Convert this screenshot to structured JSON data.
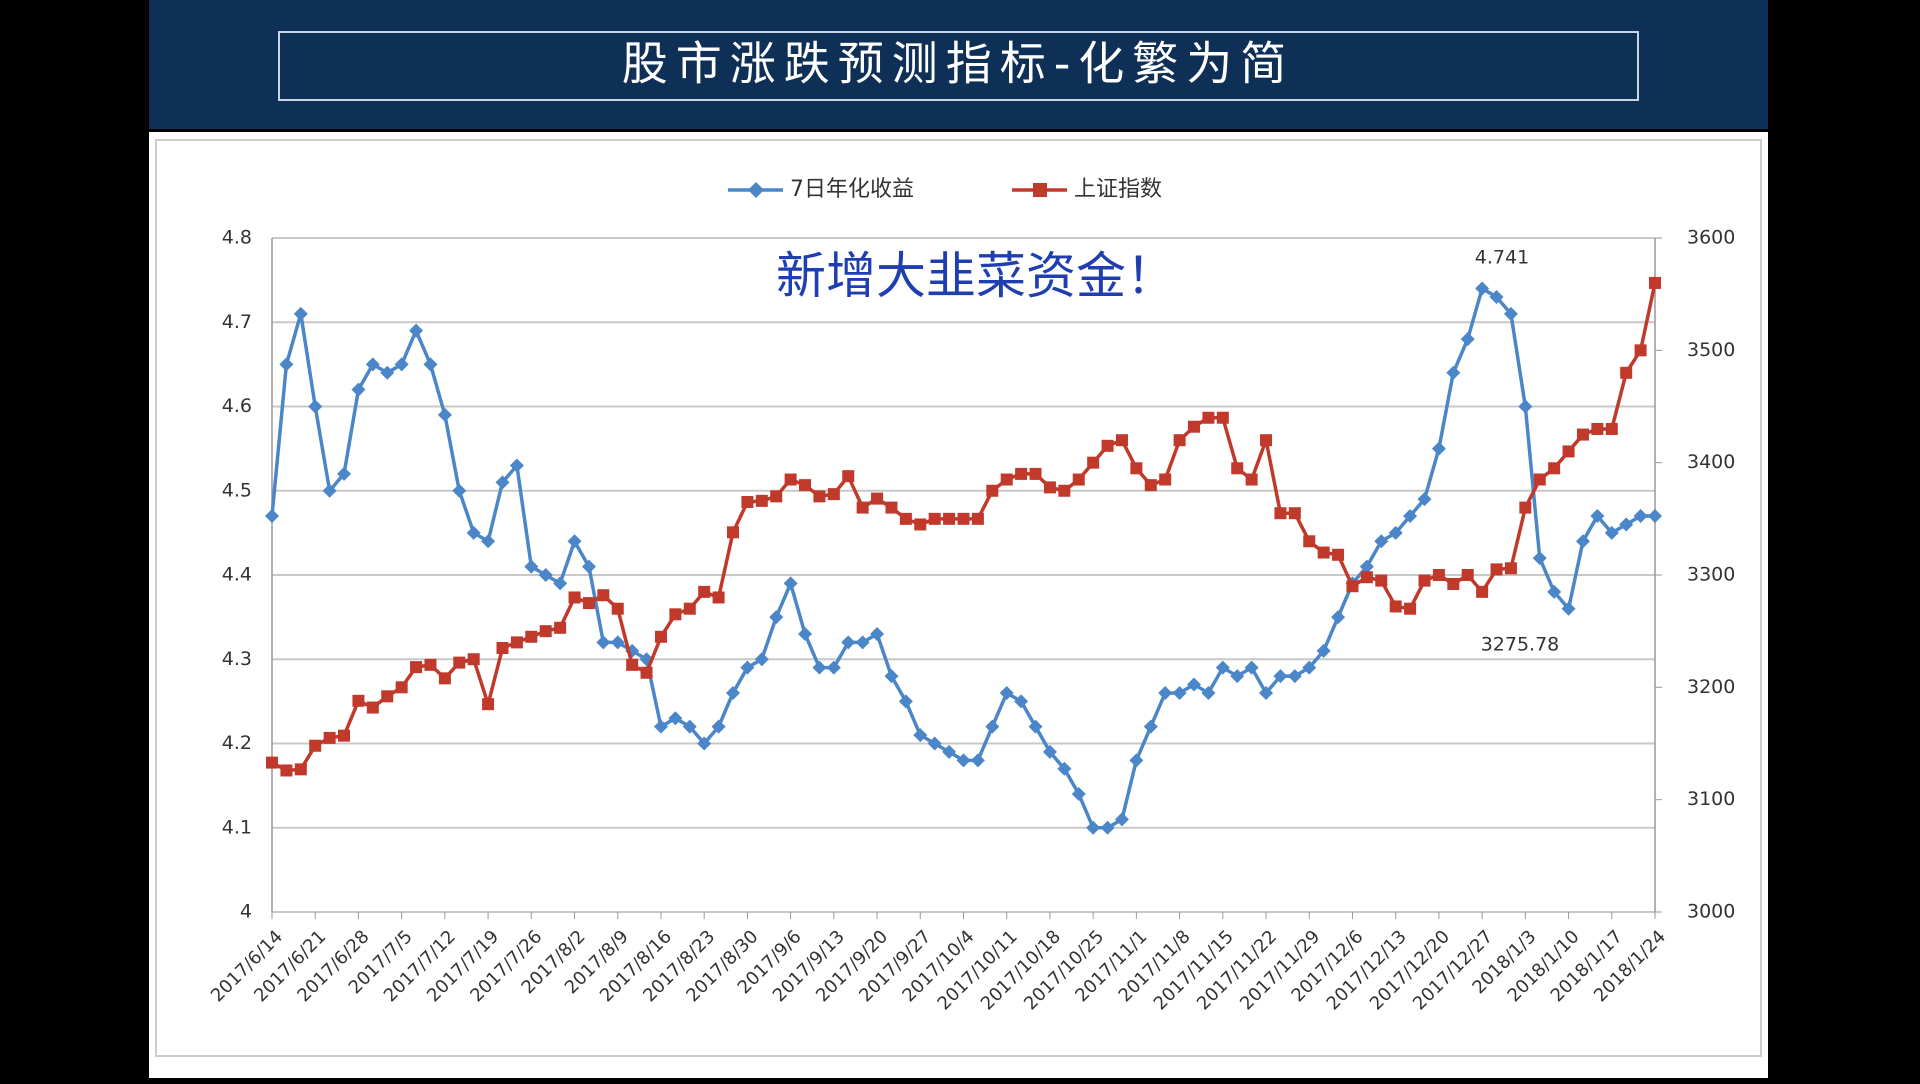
{
  "header": {
    "title": "股市涨跌预测指标-化繁为简"
  },
  "chart_data": {
    "type": "line",
    "annotations": [
      "新增大韭菜资金！",
      "4.741",
      "3275.78"
    ],
    "categories": [
      "2017/6/14",
      null,
      null,
      "2017/6/21",
      null,
      null,
      "2017/6/28",
      null,
      null,
      "2017/7/5",
      null,
      null,
      "2017/7/12",
      null,
      null,
      "2017/7/19",
      null,
      null,
      "2017/7/26",
      null,
      null,
      "2017/8/2",
      null,
      null,
      "2017/8/9",
      null,
      null,
      "2017/8/16",
      null,
      null,
      "2017/8/23",
      null,
      null,
      "2017/8/30",
      null,
      null,
      "2017/9/6",
      null,
      null,
      "2017/9/13",
      null,
      null,
      "2017/9/20",
      null,
      null,
      "2017/9/27",
      null,
      null,
      "2017/10/4",
      null,
      null,
      "2017/10/11",
      null,
      null,
      "2017/10/18",
      null,
      null,
      "2017/10/25",
      null,
      null,
      "2017/11/1",
      null,
      null,
      "2017/11/8",
      null,
      null,
      "2017/11/15",
      null,
      null,
      "2017/11/22",
      null,
      null,
      "2017/11/29",
      null,
      null,
      "2017/12/6",
      null,
      null,
      "2017/12/13",
      null,
      null,
      "2017/12/20",
      null,
      null,
      "2017/12/27",
      null,
      null,
      "2018/1/3",
      null,
      null,
      "2018/1/10",
      null,
      null,
      "2018/1/17",
      null,
      null,
      "2018/1/24"
    ],
    "series": [
      {
        "name": "7日年化收益",
        "color": "#4a86c8",
        "marker": "diamond",
        "axis": "y",
        "values": [
          4.47,
          4.65,
          4.71,
          4.6,
          4.5,
          4.52,
          4.62,
          4.65,
          4.64,
          4.65,
          4.69,
          4.65,
          4.59,
          4.5,
          4.45,
          4.44,
          4.51,
          4.53,
          4.41,
          4.4,
          4.39,
          4.44,
          4.41,
          4.32,
          4.32,
          4.31,
          4.3,
          4.22,
          4.23,
          4.22,
          4.2,
          4.22,
          4.26,
          4.29,
          4.3,
          4.35,
          4.39,
          4.33,
          4.29,
          4.29,
          4.32,
          4.32,
          4.33,
          4.28,
          4.25,
          4.21,
          4.2,
          4.19,
          4.18,
          4.18,
          4.22,
          4.26,
          4.25,
          4.22,
          4.19,
          4.17,
          4.14,
          4.1,
          4.1,
          4.11,
          4.18,
          4.22,
          4.26,
          4.26,
          4.27,
          4.26,
          4.29,
          4.28,
          4.29,
          4.26,
          4.28,
          4.28,
          4.29,
          4.31,
          4.35,
          4.39,
          4.41,
          4.44,
          4.45,
          4.47,
          4.49,
          4.55,
          4.64,
          4.68,
          4.74,
          4.73,
          4.71,
          4.6,
          4.42,
          4.38,
          4.36,
          4.44,
          4.47,
          4.45,
          4.46,
          4.47,
          4.47
        ]
      },
      {
        "name": "上证指数",
        "color": "#c0392b",
        "marker": "square",
        "axis": "y2",
        "values": [
          3133,
          3126,
          3127,
          3148,
          3155,
          3157,
          3188,
          3182,
          3192,
          3200,
          3218,
          3220,
          3208,
          3222,
          3225,
          3185,
          3235,
          3240,
          3245,
          3250,
          3253,
          3280,
          3275,
          3282,
          3270,
          3220,
          3213,
          3245,
          3265,
          3270,
          3285,
          3280,
          3338,
          3365,
          3366,
          3370,
          3385,
          3380,
          3370,
          3372,
          3388,
          3360,
          3368,
          3360,
          3350,
          3345,
          3350,
          3350,
          3350,
          3350,
          3375,
          3385,
          3390,
          3390,
          3378,
          3375,
          3385,
          3400,
          3415,
          3420,
          3395,
          3380,
          3385,
          3420,
          3432,
          3440,
          3440,
          3395,
          3385,
          3420,
          3355,
          3355,
          3330,
          3320,
          3318,
          3290,
          3298,
          3295,
          3272,
          3270,
          3295,
          3300,
          3292,
          3300,
          3285,
          3305,
          3306,
          3360,
          3385,
          3395,
          3410,
          3425,
          3430,
          3430,
          3480,
          3500,
          3560
        ]
      }
    ],
    "ylim": [
      4,
      4.8
    ],
    "yticks": [
      4,
      4.1,
      4.2,
      4.3,
      4.4,
      4.5,
      4.6,
      4.7,
      4.8
    ],
    "y2lim": [
      3000,
      3600
    ],
    "y2ticks": [
      3000,
      3100,
      3200,
      3300,
      3400,
      3500,
      3600
    ],
    "grid": true,
    "legend": "top"
  }
}
